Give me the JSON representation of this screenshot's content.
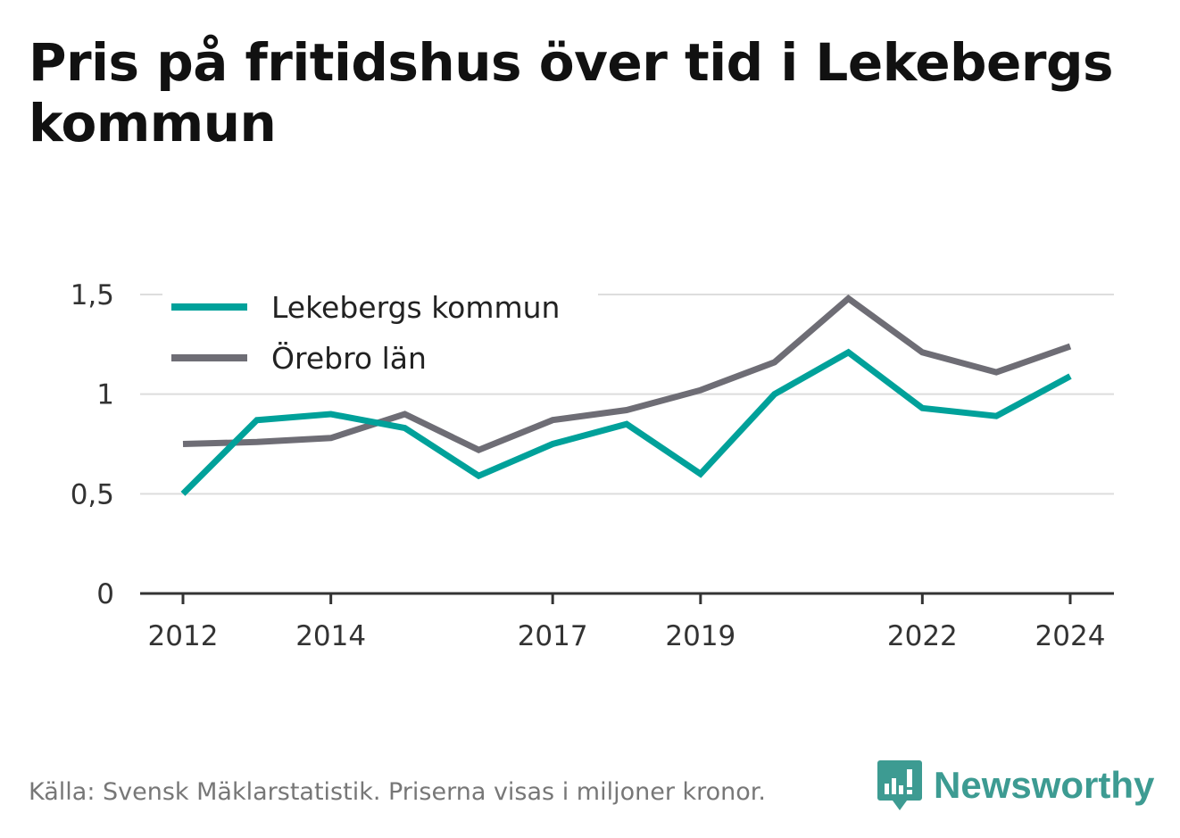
{
  "title": "Pris på fritidshus över tid i Lekebergs kommun",
  "source": "Källa: Svensk Mäklarstatistik. Priserna visas i miljoner kronor.",
  "brand": {
    "name": "Newsworthy",
    "icon": "bar-chart-speech-bubble-icon",
    "color": "#3d9b92"
  },
  "chart_data": {
    "type": "line",
    "title": "Pris på fritidshus över tid i Lekebergs kommun",
    "xlabel": "",
    "ylabel": "",
    "x": [
      2012,
      2013,
      2014,
      2015,
      2016,
      2017,
      2018,
      2019,
      2020,
      2021,
      2022,
      2023,
      2024
    ],
    "x_ticks": [
      2012,
      2014,
      2017,
      2019,
      2022,
      2024
    ],
    "y_ticks": [
      0,
      0.5,
      1,
      1.5
    ],
    "y_tick_labels": [
      "0",
      "0,5",
      "1",
      "1,5"
    ],
    "ylim": [
      0,
      1.5
    ],
    "grid": true,
    "legend": "top-left",
    "series": [
      {
        "name": "Lekebergs kommun",
        "color": "#00a19a",
        "values": [
          0.5,
          0.87,
          0.9,
          0.83,
          0.59,
          0.75,
          0.85,
          0.6,
          1.0,
          1.21,
          0.93,
          0.89,
          1.09
        ]
      },
      {
        "name": "Örebro län",
        "color": "#6e6d75",
        "values": [
          0.75,
          0.76,
          0.78,
          0.9,
          0.72,
          0.87,
          0.92,
          1.02,
          1.16,
          1.48,
          1.21,
          1.11,
          1.24
        ]
      }
    ]
  }
}
